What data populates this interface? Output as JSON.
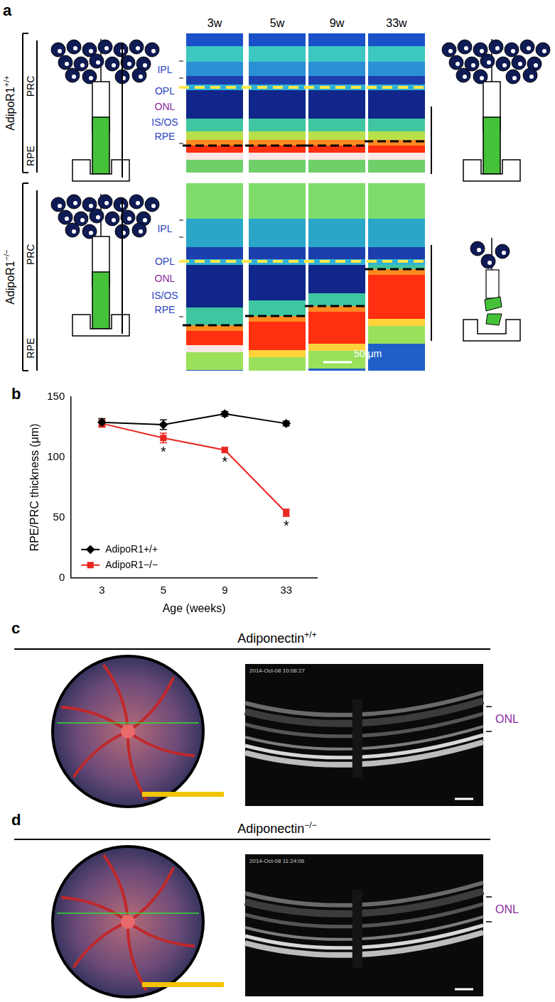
{
  "panel_letters": [
    "a",
    "b",
    "c",
    "d"
  ],
  "panel_a": {
    "rows": [
      {
        "genotype": "AdipoR1",
        "superscript": "+/+"
      },
      {
        "genotype": "AdipoR1",
        "superscript": "−/−"
      }
    ],
    "columns": [
      "3w",
      "5w",
      "9w",
      "33w"
    ],
    "layer_labels": [
      {
        "text": "IPL",
        "color": "#2b3fc2"
      },
      {
        "text": "OPL",
        "color": "#2b3fc2"
      },
      {
        "text": "ONL",
        "color": "#8e2a9e"
      },
      {
        "text": "IS/OS",
        "color": "#2b3fc2"
      },
      {
        "text": "RPE",
        "color": "#2b3fc2"
      }
    ],
    "bracket_labels": [
      "PRC",
      "RPE"
    ],
    "scale_bar": "50 μm"
  },
  "chart_data": {
    "type": "line",
    "x_label": "Age (weeks)",
    "y_label": "RPE/PRC thickness (μm)",
    "categories": [
      "3",
      "5",
      "9",
      "33"
    ],
    "ylim": [
      0,
      150
    ],
    "yticks": [
      0,
      50,
      100,
      150
    ],
    "grid": false,
    "legend": "lower left",
    "series": [
      {
        "name": "AdipoR1+/+",
        "color": "#000000",
        "marker": "diamond",
        "values": [
          129,
          127,
          136,
          128
        ],
        "errors": [
          3,
          4,
          2,
          2
        ]
      },
      {
        "name": "AdipoR1−/−",
        "color": "#e8251f",
        "marker": "square",
        "values": [
          128,
          116,
          106,
          54
        ],
        "errors": [
          3,
          4,
          2,
          3
        ],
        "significance": [
          null,
          "*",
          "*",
          "*"
        ]
      }
    ]
  },
  "panel_c": {
    "genotype": "Adiponectin",
    "superscript": "+/+",
    "timestamp": "2014-Oct-08 10:08:27",
    "layer_label": "ONL"
  },
  "panel_d": {
    "genotype": "Adiponectin",
    "superscript": "−/−",
    "timestamp": "2014-Oct-08 11:24:06",
    "layer_label": "ONL"
  }
}
